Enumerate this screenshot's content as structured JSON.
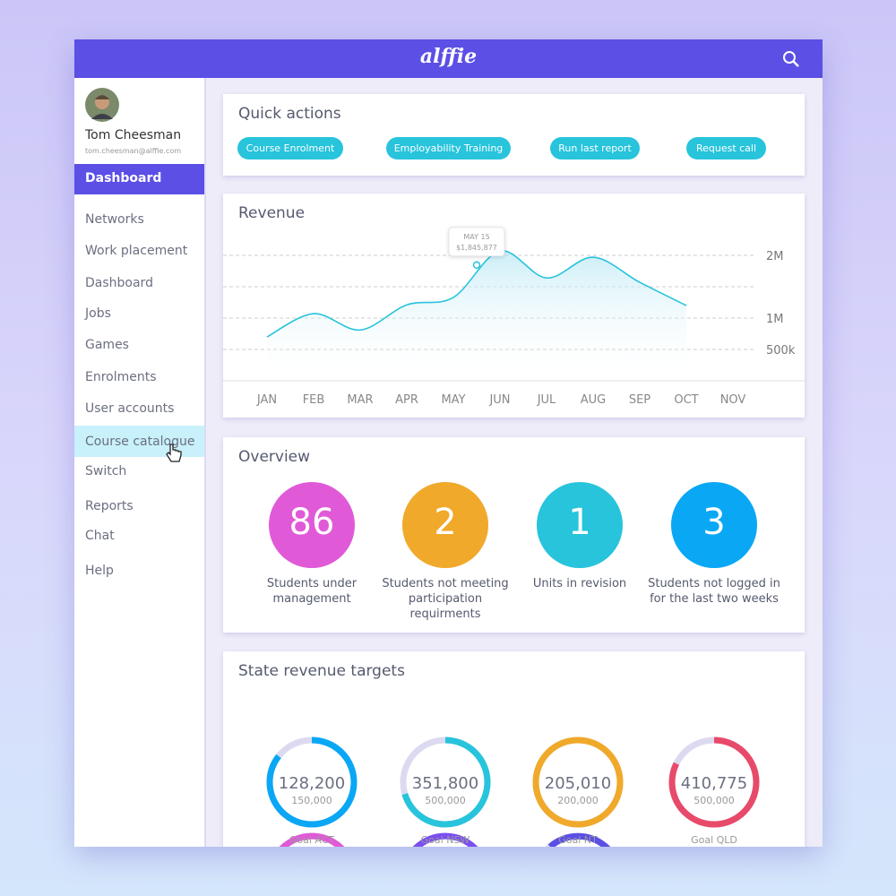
{
  "header": {
    "logo": "alffie"
  },
  "sidebar": {
    "user": {
      "name": "Tom Cheesman",
      "email": "tom.cheesman@alffie.com"
    },
    "active": "Dashboard",
    "items": [
      "Networks",
      "Work placement",
      "Dashboard",
      "Jobs",
      "Games",
      "Enrolments",
      "User accounts",
      "Course catalogue",
      "Switch",
      "Reports",
      "Chat",
      "Help"
    ],
    "highlighted": 7
  },
  "quick_actions": {
    "title": "Quick actions",
    "buttons": [
      "Course Enrolment",
      "Employability Training",
      "Run last report",
      "Request call"
    ]
  },
  "chart_data": {
    "type": "line",
    "title": "Revenue",
    "categories": [
      "JAN",
      "FEB",
      "MAR",
      "APR",
      "MAY",
      "JUN",
      "JUL",
      "AUG",
      "SEP",
      "OCT",
      "NOV"
    ],
    "series": [
      {
        "name": "Revenue",
        "color": "#27c4dc",
        "values": [
          700000,
          1070000,
          810000,
          1210000,
          1330000,
          2070000,
          1640000,
          1970000,
          1570000,
          1200000,
          null
        ]
      }
    ],
    "ylim": [
      0,
      2500000
    ],
    "yticks": [
      {
        "value": 500000,
        "label": "500k"
      },
      {
        "value": 1000000,
        "label": "1M"
      },
      {
        "value": 1500000,
        "label": null
      },
      {
        "value": 2000000,
        "label": "2M"
      }
    ],
    "grid": true,
    "annotation": {
      "label": "MAY 15",
      "value": 1845877,
      "value_label": "$1,845,877"
    }
  },
  "overview": {
    "title": "Overview",
    "items": [
      {
        "value": 86,
        "label": "Students under management",
        "color": "#e05ad8"
      },
      {
        "value": 2,
        "label": "Students not meeting participation requirments",
        "color": "#f0a92a"
      },
      {
        "value": 1,
        "label": "Units in revision",
        "color": "#27c4dc"
      },
      {
        "value": 3,
        "label": "Students not logged in for the last two weeks",
        "color": "#0aa7f5"
      }
    ]
  },
  "targets": {
    "title": "State revenue targets",
    "items": [
      {
        "name": "Goal ACT",
        "value": 128200,
        "value_label": "128,200",
        "goal": 150000,
        "goal_label": "150,000",
        "color": "#0aa7f5"
      },
      {
        "name": "Goal NSW",
        "value": 351800,
        "value_label": "351,800",
        "goal": 500000,
        "goal_label": "500,000",
        "color": "#27c4dc"
      },
      {
        "name": "Goal NT",
        "value": 205010,
        "value_label": "205,010",
        "goal": 200000,
        "goal_label": "200,000",
        "color": "#f0a92a"
      },
      {
        "name": "Goal QLD",
        "value": 410775,
        "value_label": "410,775",
        "goal": 500000,
        "goal_label": "500,000",
        "color": "#e84a6a"
      }
    ]
  }
}
